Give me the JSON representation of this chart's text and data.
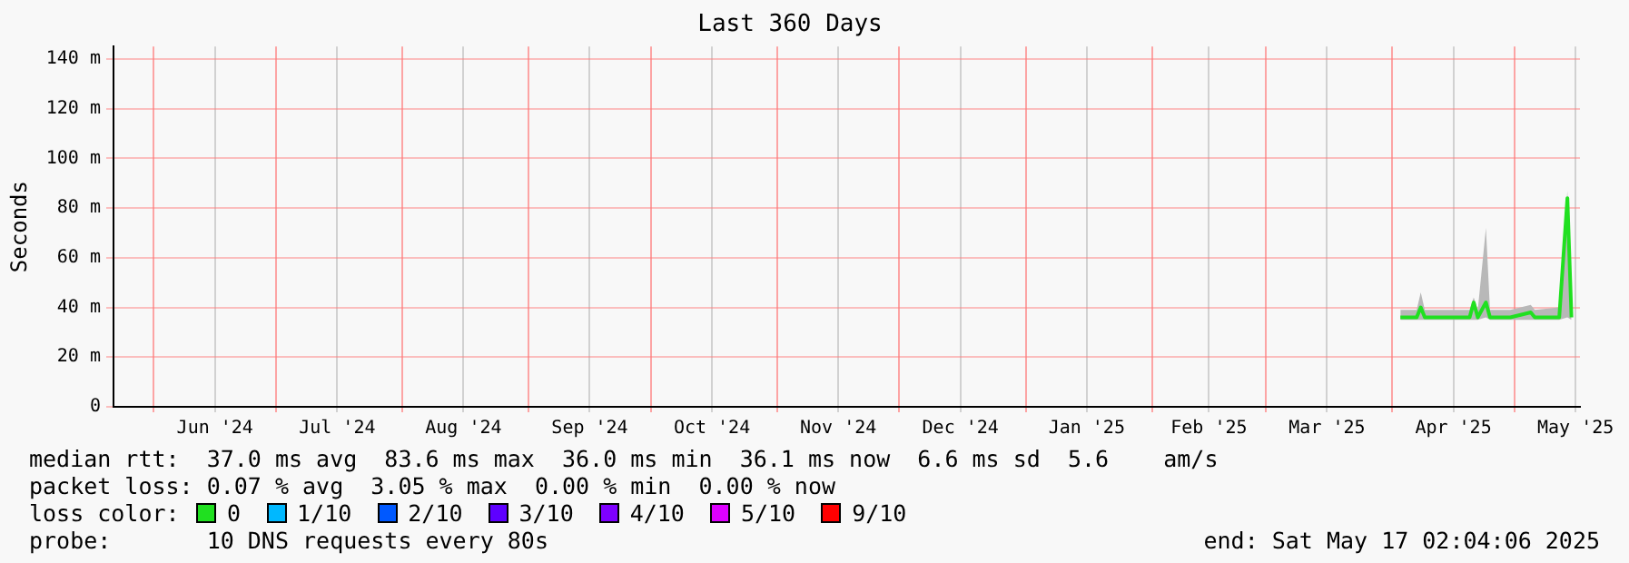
{
  "chart_data": {
    "type": "line",
    "title": "Last 360 Days",
    "ylabel": "Seconds",
    "legend": "bottom",
    "grid": true,
    "legend_title": "loss color:",
    "xlim": [
      "2024-05-22T02:04",
      "2025-05-17T02:04"
    ],
    "xticks": [
      {
        "value": "2024-06-01",
        "label": null
      },
      {
        "value": "2024-06-16",
        "label": "Jun '24"
      },
      {
        "value": "2024-07-01",
        "label": null
      },
      {
        "value": "2024-07-16",
        "label": "Jul '24"
      },
      {
        "value": "2024-08-01",
        "label": null
      },
      {
        "value": "2024-08-16",
        "label": "Aug '24"
      },
      {
        "value": "2024-09-01",
        "label": null
      },
      {
        "value": "2024-09-16",
        "label": "Sep '24"
      },
      {
        "value": "2024-10-01",
        "label": null
      },
      {
        "value": "2024-10-16",
        "label": "Oct '24"
      },
      {
        "value": "2024-11-01",
        "label": null
      },
      {
        "value": "2024-11-16",
        "label": "Nov '24"
      },
      {
        "value": "2024-12-01",
        "label": null
      },
      {
        "value": "2024-12-16",
        "label": "Dec '24"
      },
      {
        "value": "2025-01-01",
        "label": null
      },
      {
        "value": "2025-01-16",
        "label": "Jan '25"
      },
      {
        "value": "2025-02-01",
        "label": null
      },
      {
        "value": "2025-02-15",
        "label": "Feb '25"
      },
      {
        "value": "2025-03-01",
        "label": null
      },
      {
        "value": "2025-03-16",
        "label": "Mar '25"
      },
      {
        "value": "2025-04-01",
        "label": null
      },
      {
        "value": "2025-04-16",
        "label": "Apr '25"
      },
      {
        "value": "2025-05-01",
        "label": null
      },
      {
        "value": "2025-05-16",
        "label": "May '25"
      }
    ],
    "ylim": [
      0,
      145
    ],
    "yticks": [
      0,
      {
        "value": 20,
        "label": "20 m"
      },
      {
        "value": 40,
        "label": "40 m"
      },
      {
        "value": 60,
        "label": "60 m"
      },
      {
        "value": 80,
        "label": "80 m"
      },
      {
        "value": 100,
        "label": "100 m"
      },
      {
        "value": 120,
        "label": "120 m"
      },
      {
        "value": 140,
        "label": "140 m"
      }
    ],
    "series": [
      {
        "name": "0",
        "color": "#20e020",
        "x": [
          "2025-04-03",
          "2025-04-07",
          "2025-04-08",
          "2025-04-09",
          "2025-04-14",
          "2025-04-20",
          "2025-04-21",
          "2025-04-22",
          "2025-04-24",
          "2025-04-25",
          "2025-04-30",
          "2025-05-05",
          "2025-05-06",
          "2025-05-12",
          "2025-05-14",
          "2025-05-15"
        ],
        "values": [
          36,
          36,
          40,
          36,
          36,
          36,
          42,
          36,
          42,
          36,
          36,
          38,
          36,
          36,
          84,
          36
        ],
        "lower": [
          35,
          35,
          35,
          35,
          35,
          35,
          35,
          35,
          36,
          35,
          35,
          35,
          35,
          35,
          36,
          35
        ],
        "upper": [
          39,
          39,
          46,
          39,
          39,
          39,
          44,
          39,
          72,
          39,
          39,
          41,
          39,
          40,
          87,
          39
        ]
      },
      {
        "name": "1/10",
        "color": "#00b8ff"
      },
      {
        "name": "2/10",
        "color": "#0059ff"
      },
      {
        "name": "3/10",
        "color": "#5e00ff"
      },
      {
        "name": "4/10",
        "color": "#7e00ff"
      },
      {
        "name": "5/10",
        "color": "#dd00ff"
      },
      {
        "name": "9/10",
        "color": "#ff0000"
      }
    ],
    "annotations": [
      "median rtt:  37.0 ms avg  83.6 ms max  36.0 ms min  36.1 ms now  6.6 ms sd  5.6    am/s",
      "packet loss: 0.07 % avg  3.05 % max  0.00 % min  0.00 % now",
      "probe:       10 DNS requests every 80s",
      "end: Sat May 17 02:04:06 2025"
    ]
  }
}
